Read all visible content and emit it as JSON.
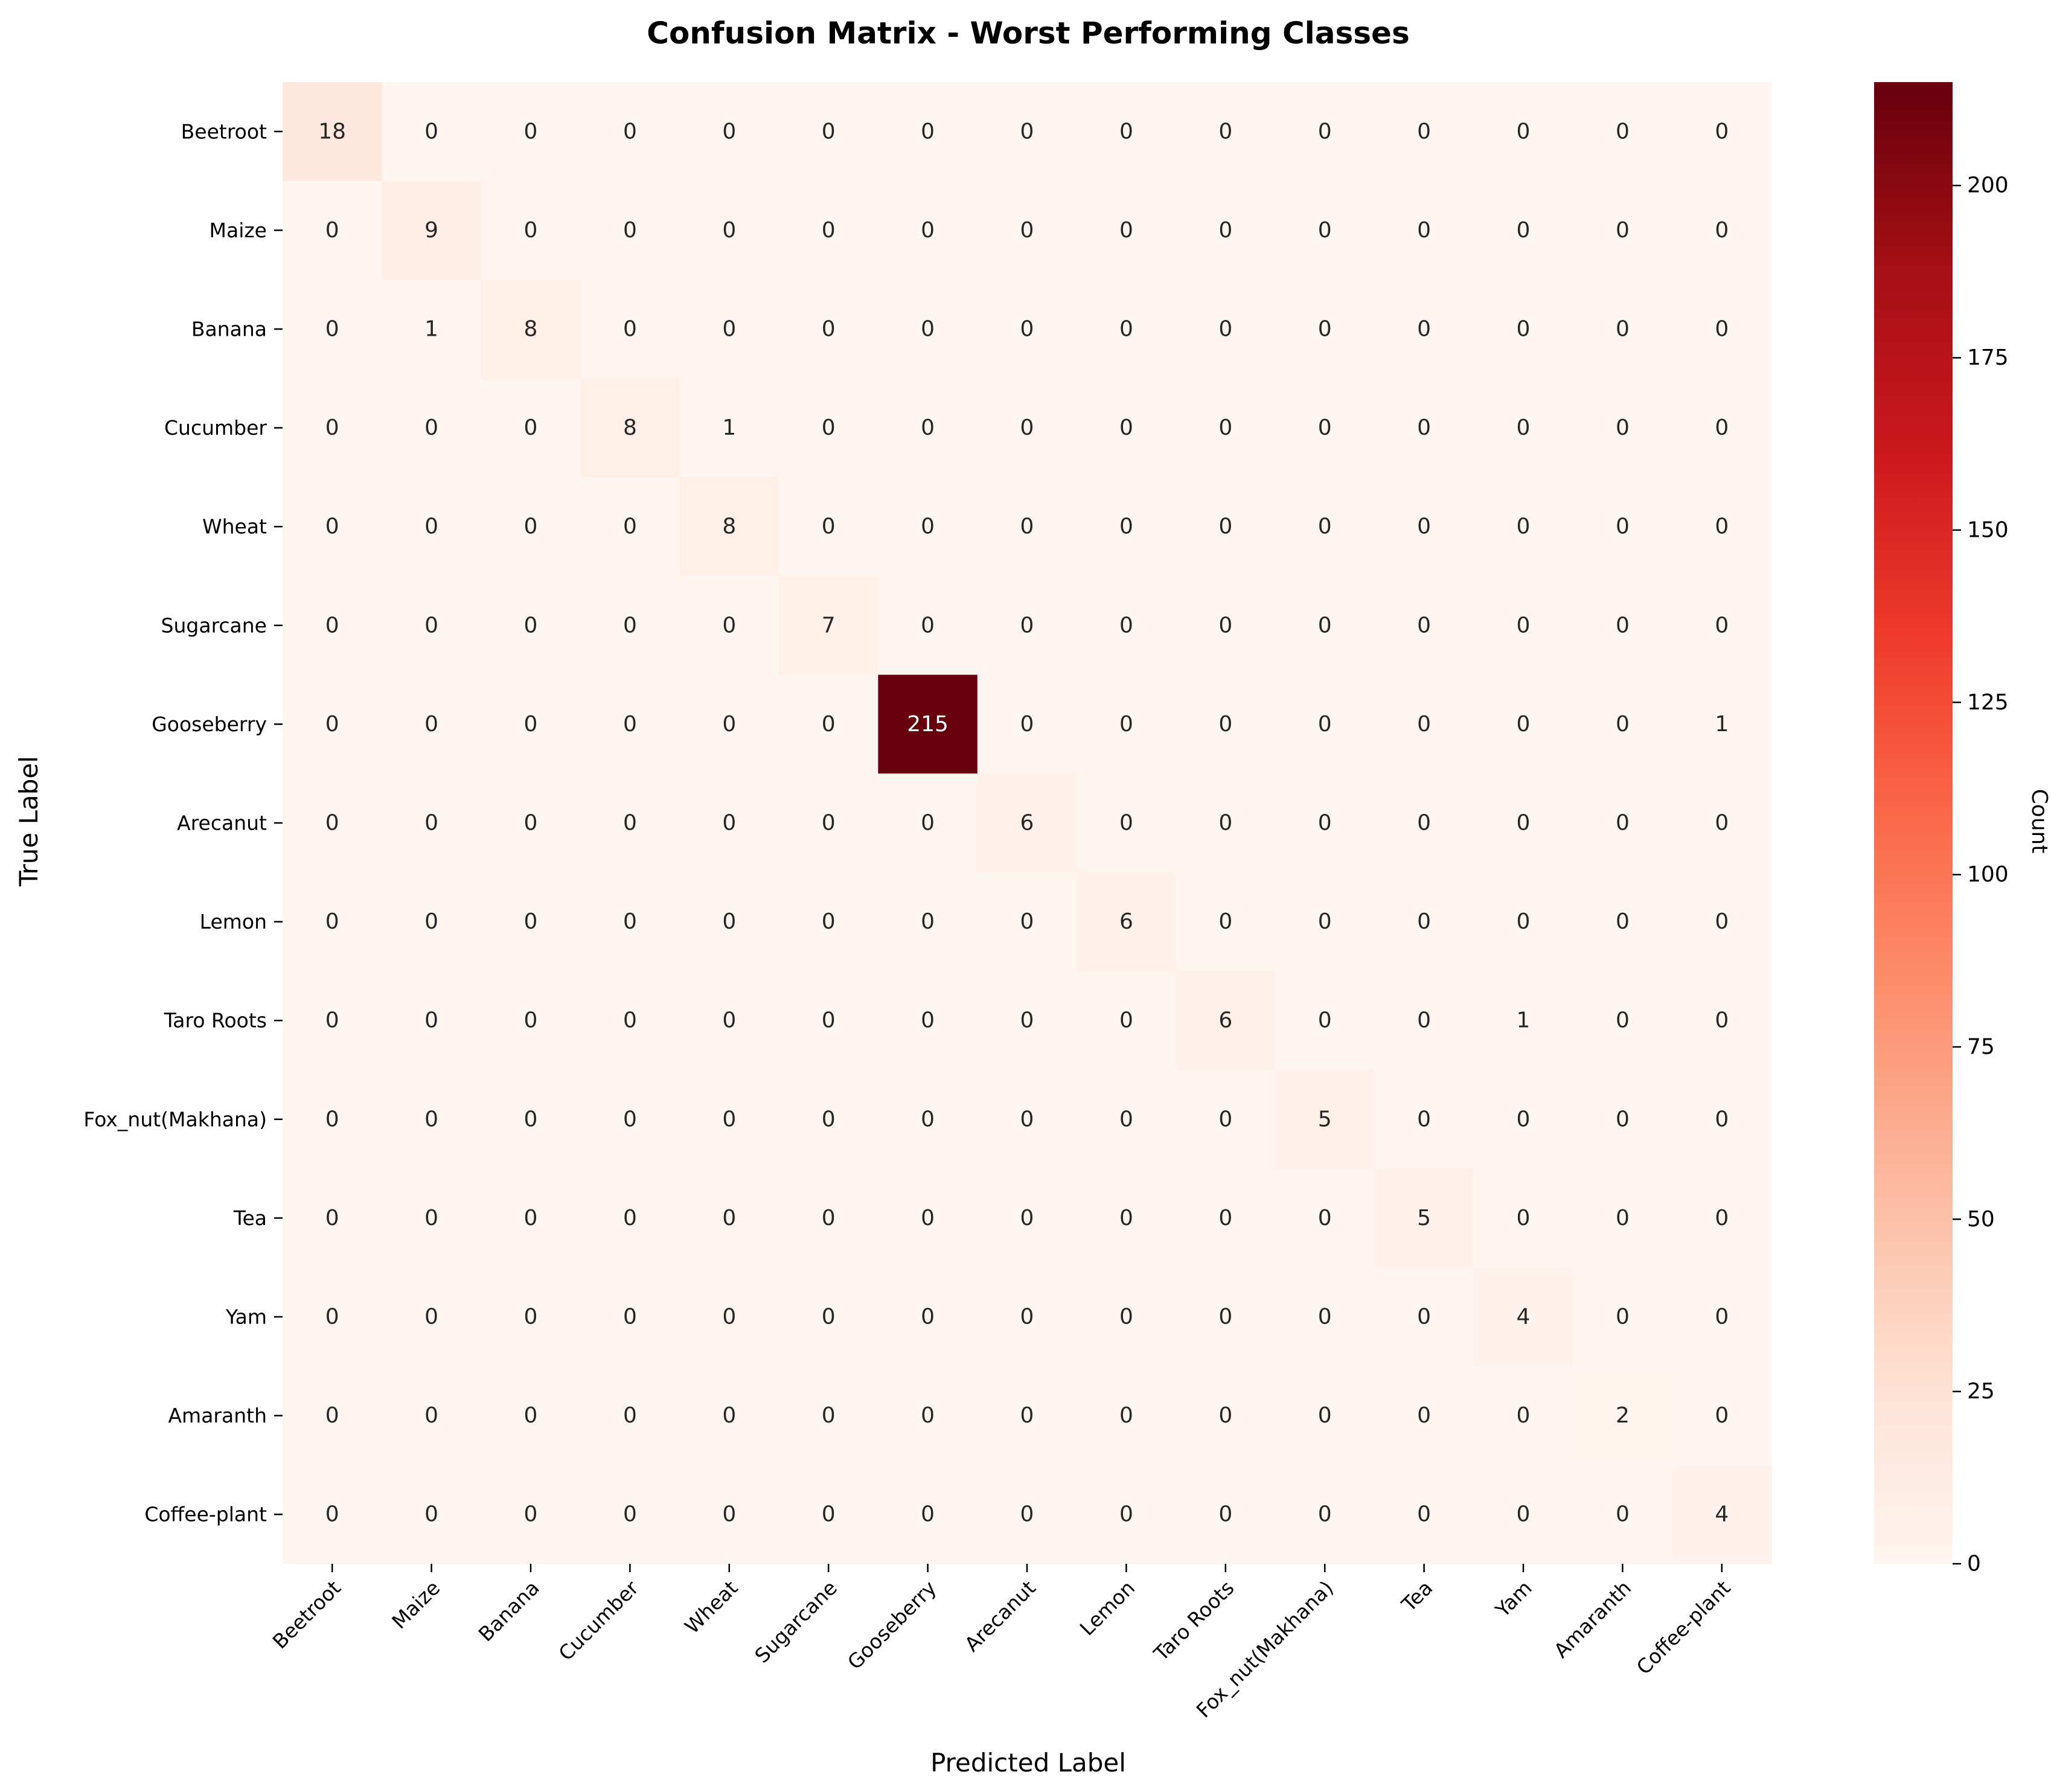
{
  "chart_data": {
    "type": "heatmap",
    "title": "Confusion Matrix - Worst Performing Classes",
    "xlabel": "Predicted Label",
    "ylabel": "True Label",
    "row_labels": [
      "Beetroot",
      "Maize",
      "Banana",
      "Cucumber",
      "Wheat",
      "Sugarcane",
      "Gooseberry",
      "Arecanut",
      "Lemon",
      "Taro Roots",
      "Fox_nut(Makhana)",
      "Tea",
      "Yam",
      "Amaranth",
      "Coffee-plant"
    ],
    "col_labels": [
      "Beetroot",
      "Maize",
      "Banana",
      "Cucumber",
      "Wheat",
      "Sugarcane",
      "Gooseberry",
      "Arecanut",
      "Lemon",
      "Taro Roots",
      "Fox_nut(Makhana)",
      "Tea",
      "Yam",
      "Amaranth",
      "Coffee-plant"
    ],
    "matrix": [
      [
        18,
        0,
        0,
        0,
        0,
        0,
        0,
        0,
        0,
        0,
        0,
        0,
        0,
        0,
        0
      ],
      [
        0,
        9,
        0,
        0,
        0,
        0,
        0,
        0,
        0,
        0,
        0,
        0,
        0,
        0,
        0
      ],
      [
        0,
        1,
        8,
        0,
        0,
        0,
        0,
        0,
        0,
        0,
        0,
        0,
        0,
        0,
        0
      ],
      [
        0,
        0,
        0,
        8,
        1,
        0,
        0,
        0,
        0,
        0,
        0,
        0,
        0,
        0,
        0
      ],
      [
        0,
        0,
        0,
        0,
        8,
        0,
        0,
        0,
        0,
        0,
        0,
        0,
        0,
        0,
        0
      ],
      [
        0,
        0,
        0,
        0,
        0,
        7,
        0,
        0,
        0,
        0,
        0,
        0,
        0,
        0,
        0
      ],
      [
        0,
        0,
        0,
        0,
        0,
        0,
        215,
        0,
        0,
        0,
        0,
        0,
        0,
        0,
        1
      ],
      [
        0,
        0,
        0,
        0,
        0,
        0,
        0,
        6,
        0,
        0,
        0,
        0,
        0,
        0,
        0
      ],
      [
        0,
        0,
        0,
        0,
        0,
        0,
        0,
        0,
        6,
        0,
        0,
        0,
        0,
        0,
        0
      ],
      [
        0,
        0,
        0,
        0,
        0,
        0,
        0,
        0,
        0,
        6,
        0,
        0,
        1,
        0,
        0
      ],
      [
        0,
        0,
        0,
        0,
        0,
        0,
        0,
        0,
        0,
        0,
        5,
        0,
        0,
        0,
        0
      ],
      [
        0,
        0,
        0,
        0,
        0,
        0,
        0,
        0,
        0,
        0,
        0,
        5,
        0,
        0,
        0
      ],
      [
        0,
        0,
        0,
        0,
        0,
        0,
        0,
        0,
        0,
        0,
        0,
        0,
        4,
        0,
        0
      ],
      [
        0,
        0,
        0,
        0,
        0,
        0,
        0,
        0,
        0,
        0,
        0,
        0,
        0,
        2,
        0
      ],
      [
        0,
        0,
        0,
        0,
        0,
        0,
        0,
        0,
        0,
        0,
        0,
        0,
        0,
        0,
        4
      ]
    ],
    "colorbar": {
      "label": "Count",
      "range": [
        0,
        215
      ],
      "ticks": [
        0,
        25,
        50,
        75,
        100,
        125,
        150,
        175,
        200
      ]
    },
    "colormap": "Reds",
    "colormap_stops": [
      "#fff5f0",
      "#fee0d2",
      "#fcbba1",
      "#fc9272",
      "#fb6a4a",
      "#ef3b2c",
      "#cb181d",
      "#a50f15",
      "#67000d"
    ]
  }
}
